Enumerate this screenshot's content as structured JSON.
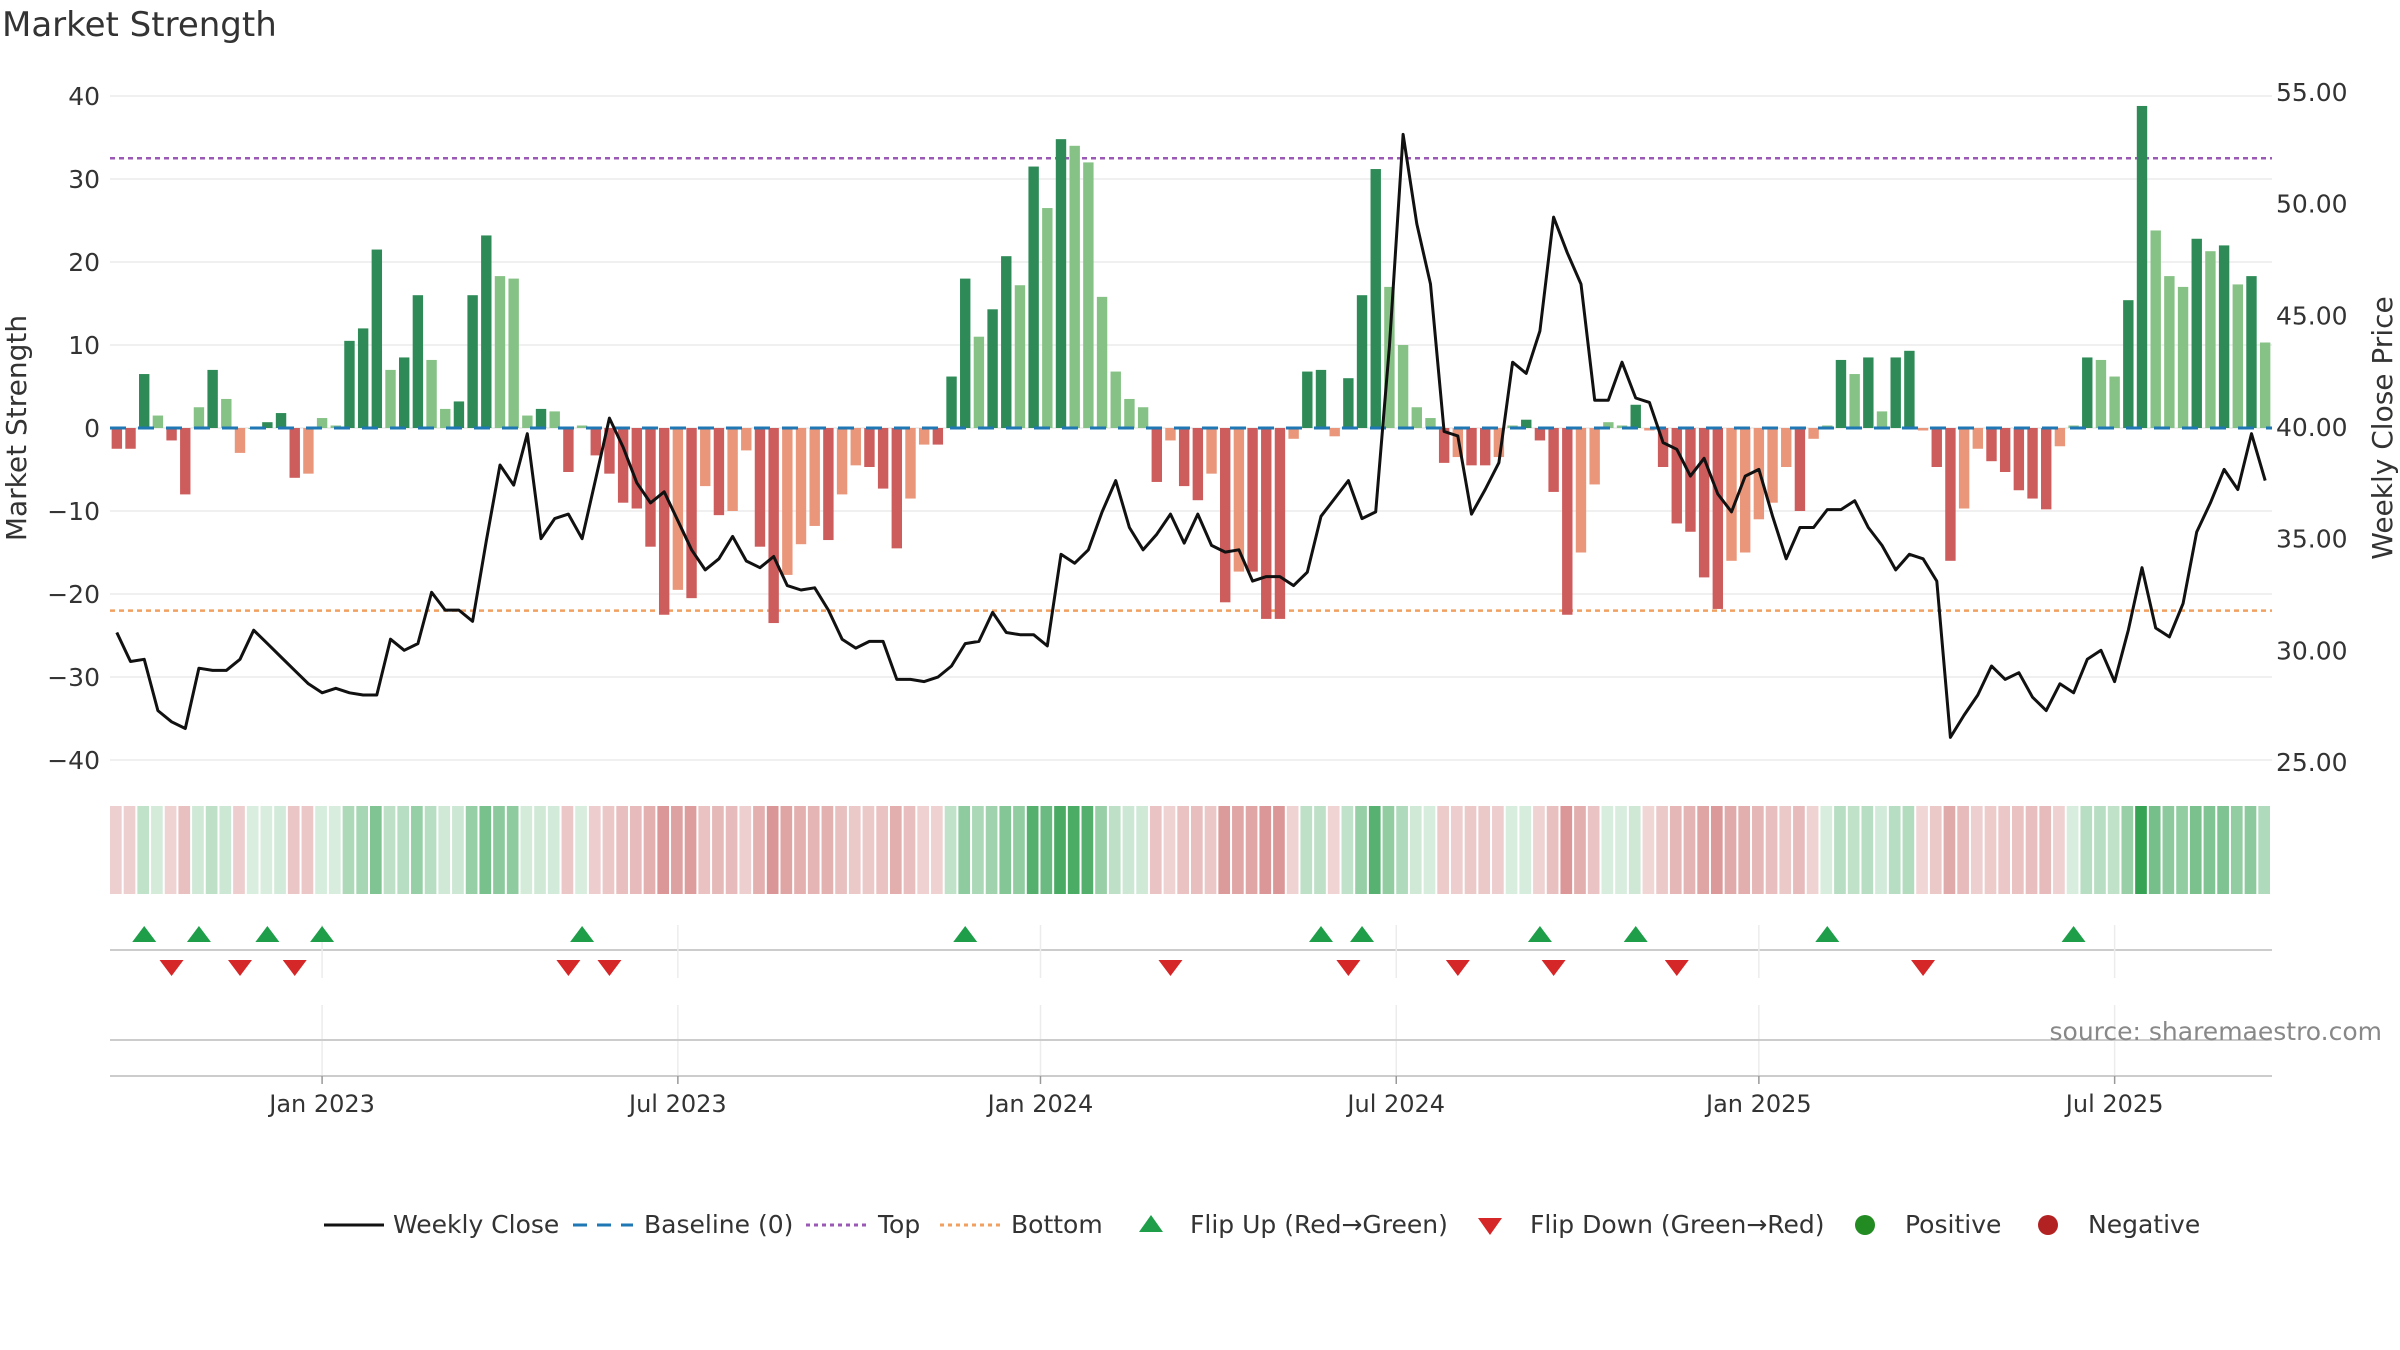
{
  "colors": {
    "pos_strong": "#2e8b57",
    "pos_light": "#86c286",
    "neg_strong": "#cd5c5c",
    "neg_light": "#e9967a",
    "top_line": "#9b59b6",
    "bottom_line": "#f0a060",
    "baseline": "#1f77b4",
    "close": "#111111",
    "flip_up": "#1f9e4a",
    "flip_down": "#d62728",
    "positive_dot": "#228b22",
    "negative_dot": "#b22222"
  },
  "chart_data": {
    "type": "bar",
    "title": "Market Strength",
    "ylabel": "Market Strength",
    "y2label": "Weekly Close Price",
    "ylim": [
      -40,
      40
    ],
    "y2lim": [
      25,
      55
    ],
    "yticks": [
      "40",
      "30",
      "20",
      "10",
      "0",
      "−10",
      "−20",
      "−30",
      "−40"
    ],
    "y2ticks": [
      "55.00",
      "50.00",
      "45.00",
      "40.00",
      "35.00",
      "30.00",
      "25.00"
    ],
    "xticks": [
      {
        "label": "Jan 2023",
        "week": 15
      },
      {
        "label": "Jul 2023",
        "week": 41
      },
      {
        "label": "Jan 2024",
        "week": 67.5
      },
      {
        "label": "Jul 2024",
        "week": 93.5
      },
      {
        "label": "Jan 2025",
        "week": 120
      },
      {
        "label": "Jul 2025",
        "week": 146
      }
    ],
    "top_level": 32.5,
    "bottom_level": -22,
    "strength": [
      -2.5,
      -2.5,
      6.5,
      1.5,
      -1.5,
      -8,
      2.5,
      7,
      3.5,
      -3,
      0,
      0.7,
      1.8,
      -6,
      -5.5,
      1.2,
      0.3,
      10.5,
      12,
      21.5,
      7,
      8.5,
      16,
      8.2,
      2.3,
      3.2,
      16,
      23.2,
      18.3,
      18,
      1.5,
      2.3,
      2,
      -5.3,
      0.3,
      -3.3,
      -5.5,
      -9,
      -9.7,
      -14.3,
      -22.5,
      -19.5,
      -20.5,
      -7,
      -10.5,
      -10,
      -2.7,
      -14.3,
      -23.5,
      -17.7,
      -14,
      -11.8,
      -13.5,
      -8,
      -4.5,
      -4.7,
      -7.3,
      -14.5,
      -8.5,
      -2,
      -2,
      6.2,
      18,
      11,
      14.3,
      20.7,
      17.2,
      31.5,
      26.5,
      34.8,
      34,
      32,
      15.8,
      6.8,
      3.5,
      2.5,
      -6.5,
      -1.5,
      -7,
      -8.7,
      -5.5,
      -21,
      -17.3,
      -17.3,
      -23,
      -23,
      -1.3,
      6.8,
      7,
      -1,
      6,
      16,
      31.2,
      17,
      10,
      2.5,
      1.2,
      -4.2,
      -3.5,
      -4.5,
      -4.5,
      -3.5,
      0.3,
      1,
      -1.5,
      -7.7,
      -22.5,
      -15,
      -6.8,
      0.7,
      0.3,
      2.8,
      -0.3,
      -4.7,
      -11.5,
      -12.5,
      -18,
      -21.8,
      -16,
      -15,
      -11,
      -9,
      -4.7,
      -10,
      -1.3,
      0.3,
      8.2,
      6.5,
      8.5,
      2,
      8.5,
      9.3,
      -0.3,
      -4.7,
      -16,
      -9.7,
      -2.5,
      -4,
      -5.3,
      -7.5,
      -8.5,
      -9.8,
      -2.2,
      0.3,
      8.5,
      8.2,
      6.2,
      15.4,
      38.8,
      23.8,
      18.3,
      17,
      22.8,
      21.3,
      22,
      17.3,
      18.3,
      10.3
    ],
    "weekly_close": [
      30.8,
      29.5,
      29.6,
      27.3,
      26.8,
      26.5,
      29.2,
      29.1,
      29.1,
      29.6,
      30.9,
      30.3,
      29.7,
      29.1,
      28.5,
      28.1,
      28.3,
      28.1,
      28.0,
      28.0,
      30.5,
      30.0,
      30.3,
      32.6,
      31.8,
      31.8,
      31.3,
      34.9,
      38.3,
      37.4,
      39.7,
      35.0,
      35.9,
      36.1,
      35.0,
      37.7,
      40.4,
      39.1,
      37.5,
      36.6,
      37.1,
      35.8,
      34.5,
      33.6,
      34.1,
      35.1,
      34.0,
      33.7,
      34.2,
      32.9,
      32.7,
      32.8,
      31.8,
      30.5,
      30.1,
      30.4,
      30.4,
      28.7,
      28.7,
      28.6,
      28.8,
      29.3,
      30.3,
      30.4,
      31.7,
      30.8,
      30.7,
      30.7,
      30.2,
      34.3,
      33.9,
      34.5,
      36.2,
      37.6,
      35.5,
      34.5,
      35.2,
      36.1,
      34.8,
      36.1,
      34.7,
      34.4,
      34.5,
      33.1,
      33.3,
      33.3,
      32.9,
      33.5,
      36.0,
      36.8,
      37.6,
      35.9,
      36.2,
      43.6,
      53.1,
      49.1,
      46.4,
      39.8,
      39.6,
      36.1,
      37.2,
      38.4,
      42.9,
      42.4,
      44.3,
      49.4,
      47.8,
      46.4,
      41.2,
      41.2,
      42.9,
      41.3,
      41.1,
      39.3,
      39.0,
      37.8,
      38.6,
      37.0,
      36.2,
      37.8,
      38.1,
      36.0,
      34.1,
      35.5,
      35.5,
      36.3,
      36.3,
      36.7,
      35.5,
      34.7,
      33.6,
      34.3,
      34.1,
      33.1,
      26.1,
      27.1,
      28.0,
      29.3,
      28.7,
      29.0,
      27.9,
      27.3,
      28.5,
      28.1,
      29.6,
      30.0,
      28.6,
      30.9,
      33.7,
      31.0,
      30.6,
      32.1,
      35.3,
      36.6,
      38.1,
      37.2,
      39.7,
      37.6
    ],
    "flip_up_weeks": [
      2,
      6,
      11,
      15,
      34,
      62,
      88,
      91,
      104,
      111,
      125,
      143
    ],
    "flip_down_weeks": [
      4,
      9,
      13,
      33,
      36,
      77,
      90,
      98,
      105,
      114,
      132
    ],
    "legend": [
      "Weekly Close",
      "Baseline (0)",
      "Top",
      "Bottom",
      "Flip Up (Red→Green)",
      "Flip Down (Green→Red)",
      "Positive",
      "Negative"
    ]
  },
  "source_note": "source: sharemaestro.com"
}
